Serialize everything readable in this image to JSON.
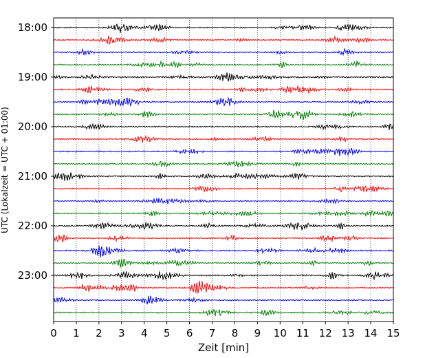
{
  "chart_data": {
    "type": "line",
    "title": "",
    "xlabel": "Zeit  [min]",
    "ylabel": "UTC (Lokalzeit = UTC + 01:00)",
    "xlim": [
      0,
      15
    ],
    "x_ticks": [
      "0",
      "1",
      "2",
      "3",
      "4",
      "5",
      "6",
      "7",
      "8",
      "9",
      "10",
      "11",
      "12",
      "13",
      "14",
      "15"
    ],
    "y_ticks": [
      "18:00",
      "19:00",
      "20:00",
      "21:00",
      "22:00",
      "23:00"
    ],
    "trace_interval_min": 15,
    "first_trace": "18:00",
    "trace_count": 24,
    "trace_colors": [
      "#000000",
      "#ff0000",
      "#0000ff",
      "#008000"
    ],
    "grid_x": "dotted",
    "legend": "none"
  }
}
